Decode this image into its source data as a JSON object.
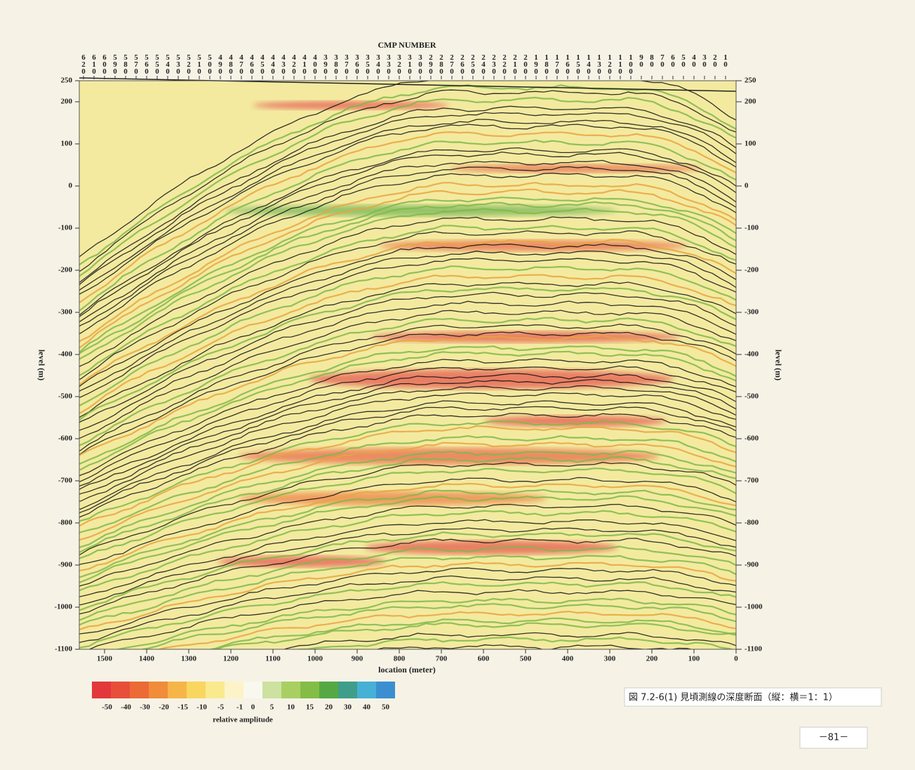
{
  "chart_data": {
    "type": "seismic-section",
    "title": "CMP NUMBER",
    "x_label": "location (meter)",
    "y_label": "level (m)",
    "xlim": [
      1560,
      0
    ],
    "xticks": [
      1500,
      1400,
      1300,
      1200,
      1100,
      1000,
      900,
      800,
      700,
      600,
      500,
      400,
      300,
      200,
      100,
      0
    ],
    "ylim": [
      -1100,
      250
    ],
    "yticks": [
      250,
      200,
      100,
      0,
      -100,
      -200,
      -300,
      -400,
      -500,
      -600,
      -700,
      -800,
      -900,
      -1000,
      -1100
    ],
    "x2lim": [
      624,
      0
    ],
    "x2ticks": [
      620,
      610,
      600,
      590,
      580,
      570,
      560,
      550,
      540,
      530,
      520,
      510,
      500,
      490,
      480,
      470,
      460,
      450,
      440,
      430,
      420,
      410,
      400,
      390,
      380,
      370,
      360,
      350,
      340,
      330,
      320,
      310,
      300,
      290,
      280,
      270,
      260,
      250,
      240,
      230,
      220,
      210,
      200,
      190,
      180,
      170,
      160,
      150,
      140,
      130,
      120,
      110,
      100,
      90,
      80,
      70,
      60,
      50,
      40,
      30,
      20,
      10
    ],
    "colorbar": {
      "label": "relative amplitude",
      "ticks": [
        -50,
        -40,
        -30,
        -20,
        -15,
        -10,
        -5,
        -1,
        0,
        5,
        10,
        15,
        20,
        30,
        40,
        50
      ],
      "colors": [
        "#e2383c",
        "#e74f3a",
        "#ec6a36",
        "#f08c3a",
        "#f6b548",
        "#f9d660",
        "#fbe98e",
        "#fcf3c8",
        "#f9f8ee",
        "#cde2a0",
        "#a9cf62",
        "#83bd45",
        "#56a844",
        "#3f9e8a",
        "#46b0d6",
        "#3b8fd0"
      ]
    }
  },
  "caption": "図 7.2-6(1) 見頃測線の深度断面（縦：横＝1：1）",
  "page_number": "－81－"
}
